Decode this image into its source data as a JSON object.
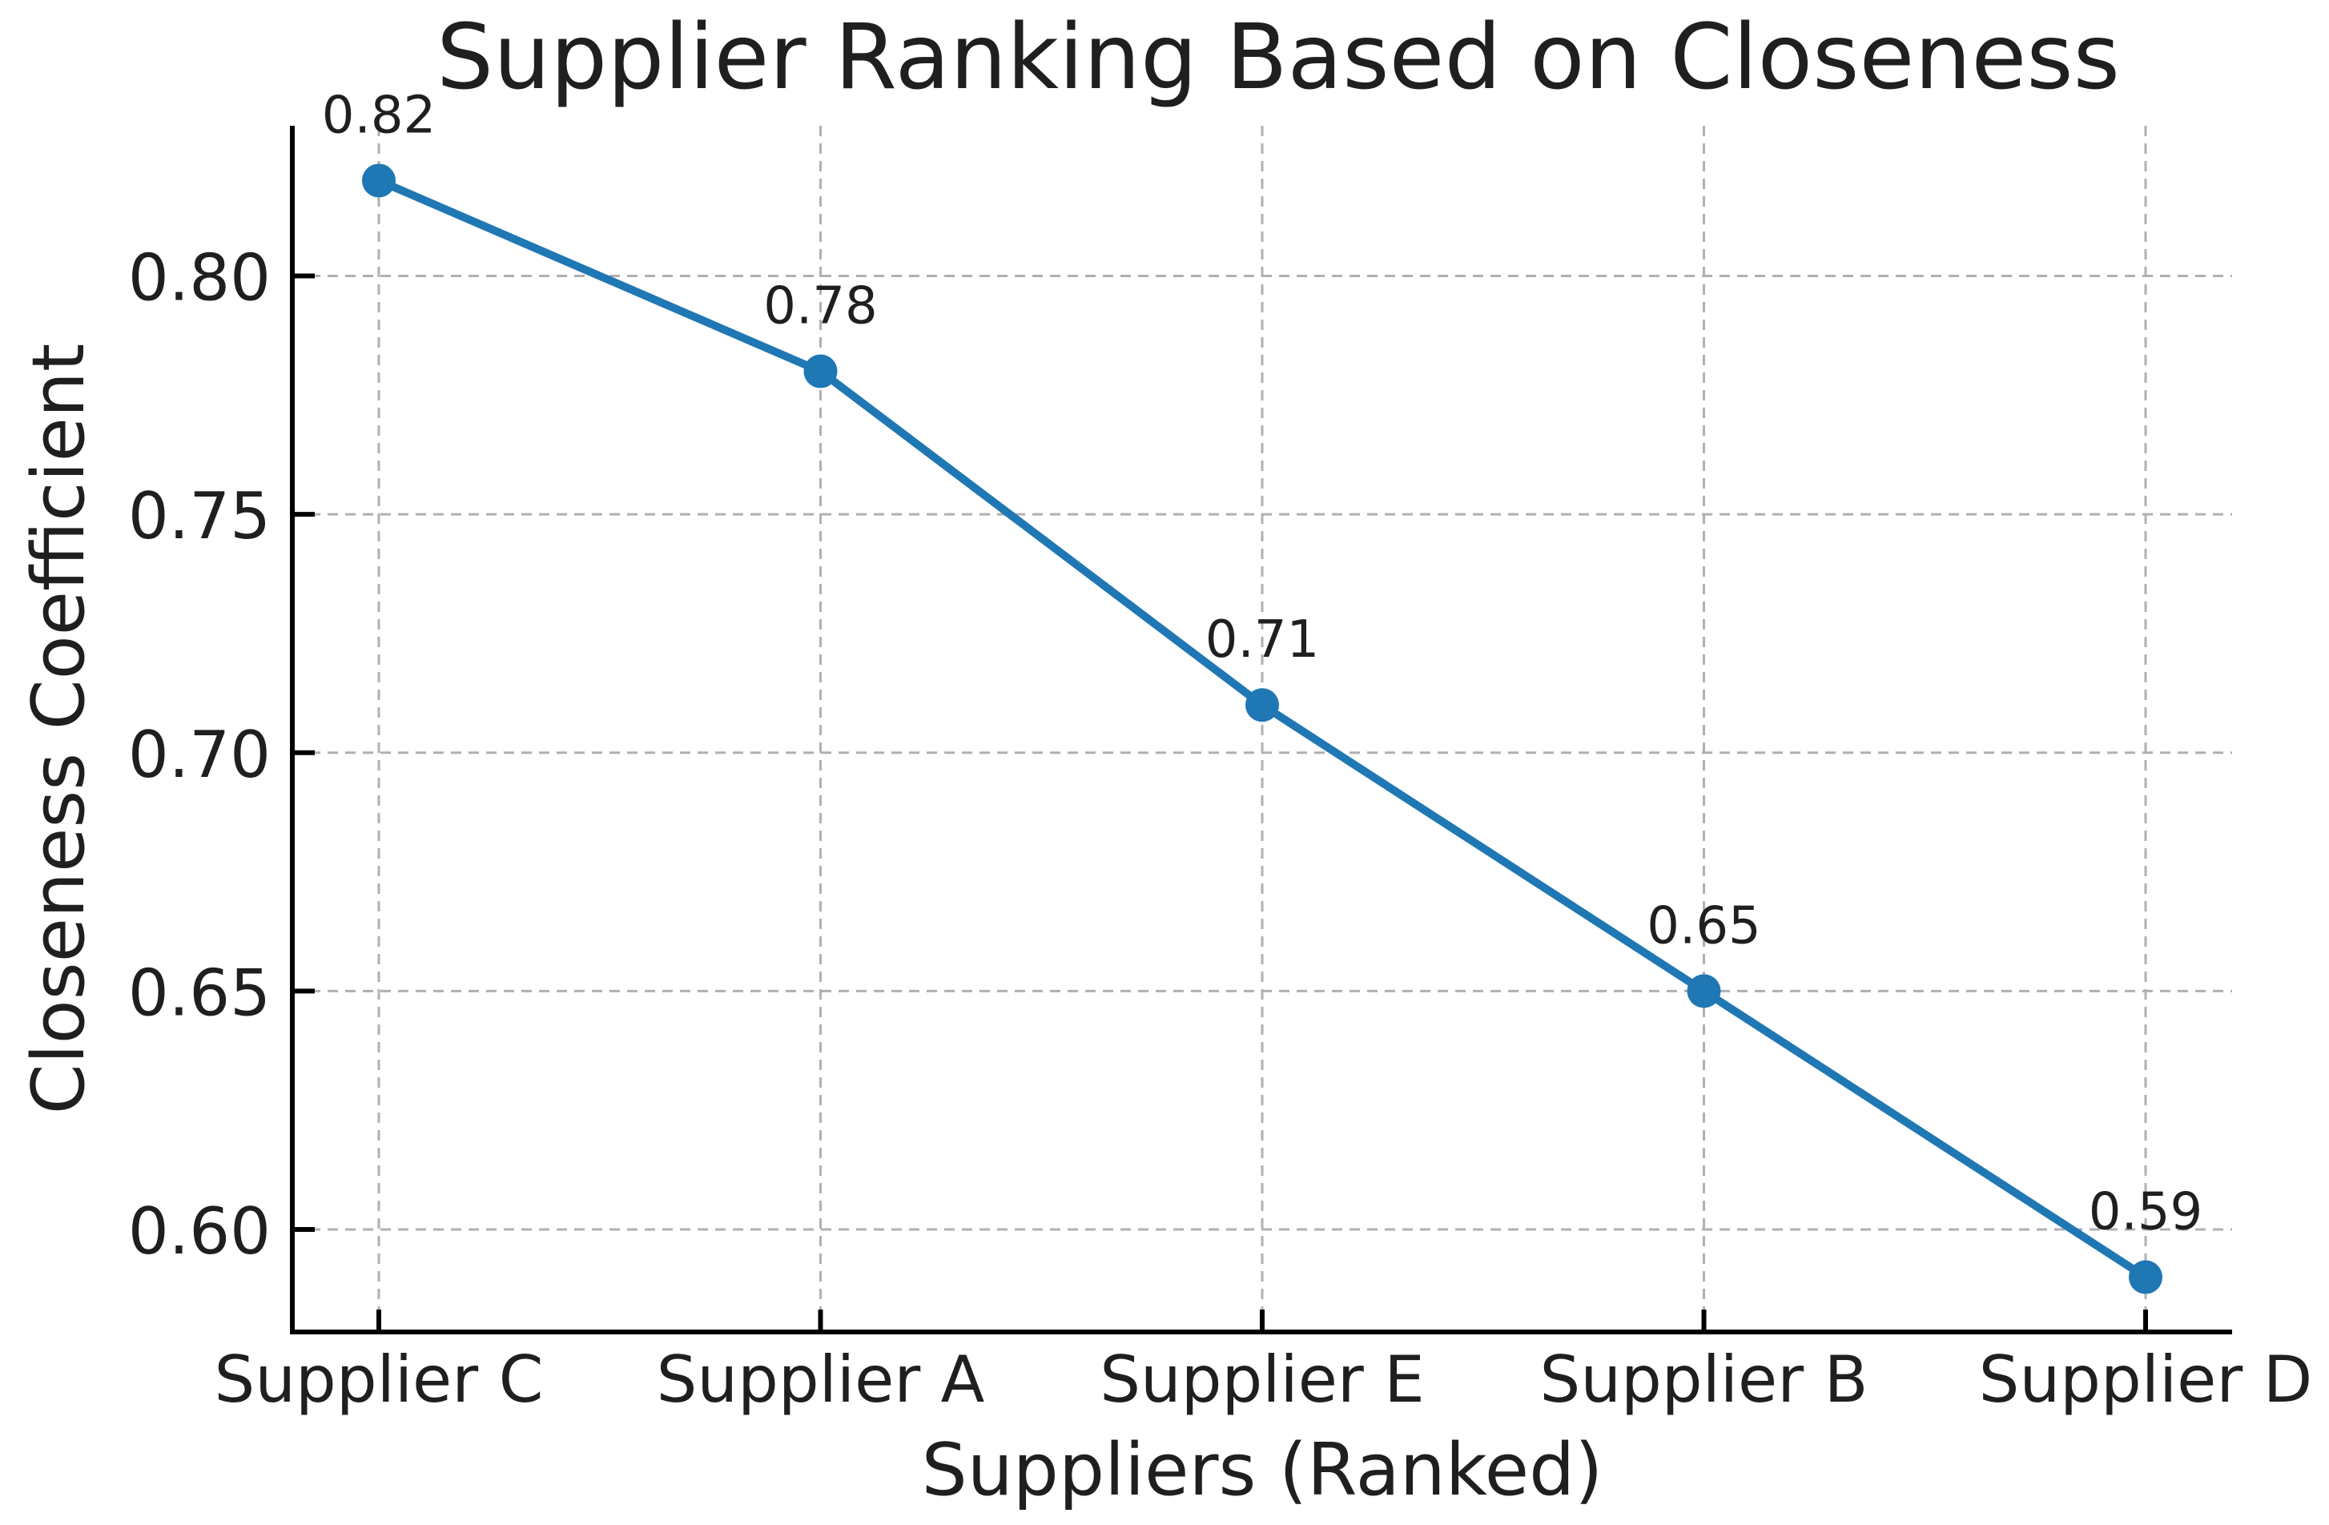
{
  "chart_data": {
    "type": "line",
    "title": "Supplier Ranking Based on Closeness",
    "xlabel": "Suppliers (Ranked)",
    "ylabel": "Closeness Coefficient",
    "categories": [
      "Supplier C",
      "Supplier A",
      "Supplier E",
      "Supplier B",
      "Supplier D"
    ],
    "values": [
      0.82,
      0.78,
      0.71,
      0.65,
      0.59
    ],
    "point_labels": [
      "0.82",
      "0.78",
      "0.71",
      "0.65",
      "0.59"
    ],
    "y_ticks": [
      0.6,
      0.65,
      0.7,
      0.75,
      0.8
    ],
    "y_tick_labels": [
      "0.60",
      "0.65",
      "0.70",
      "0.75",
      "0.80"
    ],
    "ylim": [
      0.5785,
      0.8315
    ],
    "grid": true,
    "grid_style": "dashed",
    "legend_position": "none",
    "colors": {
      "line": "#1f77b4",
      "marker": "#1f77b4",
      "grid": "#b0b0b0",
      "axis": "#000000",
      "text": "#1f1f1f",
      "background": "#ffffff"
    }
  }
}
